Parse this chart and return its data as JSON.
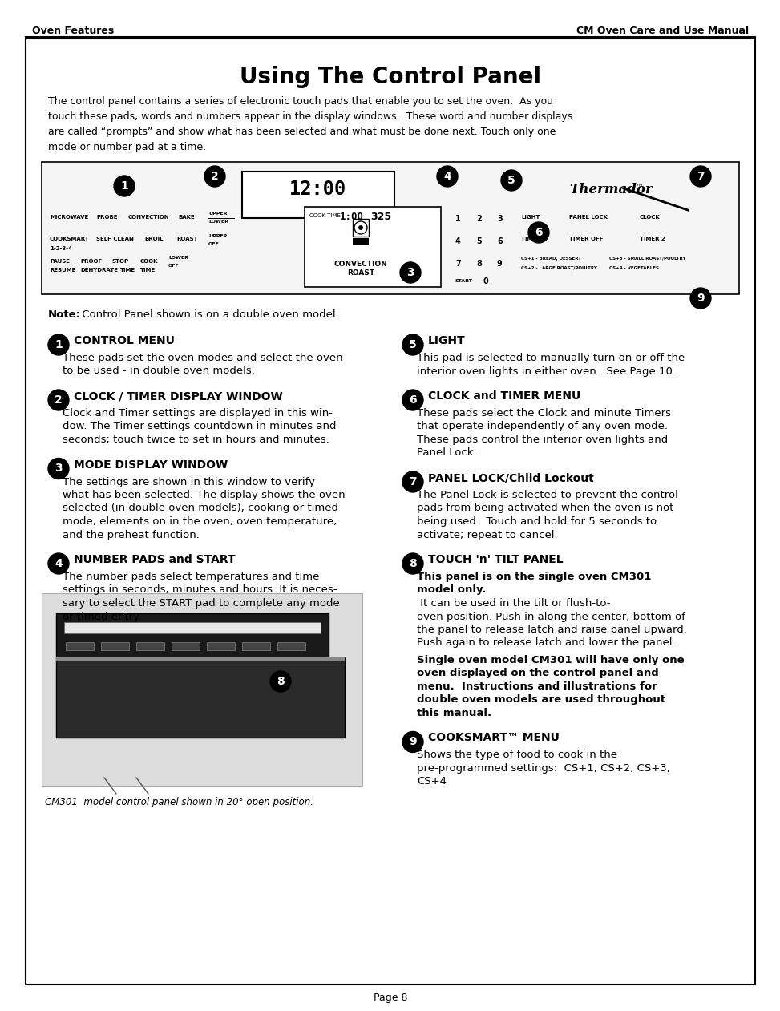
{
  "page_title": "Using The Control Panel",
  "header_left": "Oven Features",
  "header_right": "CM Oven Care and Use Manual",
  "intro_text": "The control panel contains a series of electronic touch pads that enable you to set the oven.  As you\ntouch these pads, words and numbers appear in the display windows.  These word and number displays\nare called “prompts” and show what has been selected and what must be done next. Touch only one\nmode or number pad at a time.",
  "note_bold": "Note:",
  "note_rest": " Control Panel shown is on a double oven model.",
  "footer_text": "Page 8",
  "caption_text": "CM301  model control panel shown in 20° open position.",
  "sections": [
    {
      "num": "1",
      "title": "CONTROL MENU",
      "body": "These pads set the oven modes and select the oven\nto be used - in double oven models."
    },
    {
      "num": "2",
      "title": "CLOCK / TIMER DISPLAY WINDOW",
      "body": "Clock and Timer settings are displayed in this win-\ndow. The Timer settings countdown in minutes and\nseconds; touch twice to set in hours and minutes."
    },
    {
      "num": "3",
      "title": "MODE DISPLAY WINDOW",
      "body": "The settings are shown in this window to verify\nwhat has been selected. The display shows the oven\nselected (in double oven models), cooking or timed\nmode, elements on in the oven, oven temperature,\nand the preheat function."
    },
    {
      "num": "4",
      "title": "NUMBER PADS and START",
      "body": "The number pads select temperatures and time\nsettings in seconds, minutes and hours. It is neces-\nsary to select the START pad to complete any mode\nor timed entry."
    },
    {
      "num": "5",
      "title": "LIGHT",
      "body": "This pad is selected to manually turn on or off the\ninterior oven lights in either oven.  See Page 10."
    },
    {
      "num": "6",
      "title": "CLOCK and TIMER MENU",
      "body": "These pads select the Clock and minute Timers\nthat operate independently of any oven mode.\nThese pads control the interior oven lights and\nPanel Lock."
    },
    {
      "num": "7",
      "title": "PANEL LOCK/Child Lockout",
      "body": "The Panel Lock is selected to prevent the control\npads from being activated when the oven is not\nbeing used.  Touch and hold for 5 seconds to\nactivate; repeat to cancel."
    },
    {
      "num": "8",
      "title": "TOUCH 'n' TILT PANEL",
      "parts": [
        {
          "text": "This panel is on the single oven CM301\nmodel only.",
          "bold": true
        },
        {
          "text": " It can be used in the tilt or flush-to-\noven position. Push in along the center, bottom of\nthe panel to release latch and raise panel upward.\nPush again to release latch and lower the panel.",
          "bold": false
        },
        {
          "text": "\nSingle oven model CM301 will have only one\noven displayed on the control panel and\nmenu.  Instructions and illustrations for\ndouble oven models are used throughout\nthis manual.",
          "bold": true
        }
      ]
    },
    {
      "num": "9",
      "title": "COOKSMART™ MENU",
      "body": "Shows the type of food to cook in the\npre-programmed settings:  CS+1, CS+2, CS+3,\nCS+4"
    }
  ],
  "bg_color": "#ffffff",
  "text_color": "#000000"
}
